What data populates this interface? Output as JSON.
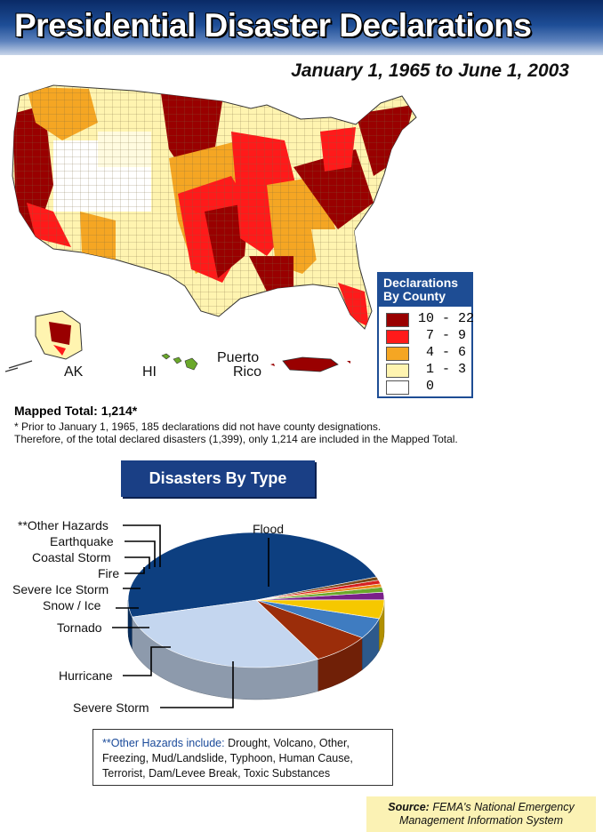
{
  "title": "Presidential Disaster Declarations",
  "subtitle": "January 1, 1965 to June 1, 2003",
  "legend": {
    "title_line1": "Declarations",
    "title_line2": "By County",
    "items": [
      {
        "range": "10 - 22",
        "color": "#990000"
      },
      {
        "range": " 7 - 9",
        "color": "#ff1a1a"
      },
      {
        "range": " 4 - 6",
        "color": "#f5a623"
      },
      {
        "range": " 1 - 3",
        "color": "#fff4b0"
      },
      {
        "range": " 0",
        "color": "#ffffff"
      }
    ]
  },
  "map_labels": {
    "ak": "AK",
    "hi": "HI",
    "pr_line1": "Puerto",
    "pr_line2": "Rico"
  },
  "notes": {
    "mapped_total": "Mapped Total: 1,214*",
    "line1": "* Prior to January 1, 1965, 185 declarations did not have county designations.",
    "line2": "Therefore, of the total declared disasters (1,399), only 1,214 are included in the Mapped Total."
  },
  "type_header": "Disasters By Type",
  "chart_data": {
    "type": "pie",
    "title": "Disasters By Type",
    "slices": [
      {
        "label": "Flood",
        "value": 48.5,
        "color": "#0d3f80"
      },
      {
        "label": "Severe Storm",
        "value": 29.0,
        "color": "#c4d6ef"
      },
      {
        "label": "Hurricane",
        "value": 7.5,
        "color": "#9b2d0a"
      },
      {
        "label": "Tornado",
        "value": 5.0,
        "color": "#3f7cc1"
      },
      {
        "label": "Snow / Ice",
        "value": 4.5,
        "color": "#f6c800"
      },
      {
        "label": "Severe Ice Storm",
        "value": 1.8,
        "color": "#7a1f8a"
      },
      {
        "label": "Fire",
        "value": 1.2,
        "color": "#6aa82a"
      },
      {
        "label": "Coastal Storm",
        "value": 0.8,
        "color": "#e88a1a"
      },
      {
        "label": "Earthquake",
        "value": 0.9,
        "color": "#d82020"
      },
      {
        "label": "**Other Hazards",
        "value": 0.8,
        "color": "#7a4a1a"
      }
    ]
  },
  "other_hazards": {
    "prefix": "**Other Hazards include:",
    "text": "Drought, Volcano, Other, Freezing, Mud/Landslide, Typhoon, Human Cause, Terrorist, Dam/Levee Break, Toxic Substances"
  },
  "source": {
    "label": "Source:",
    "line1": "FEMA's National Emergency",
    "line2": "Management Information System"
  }
}
